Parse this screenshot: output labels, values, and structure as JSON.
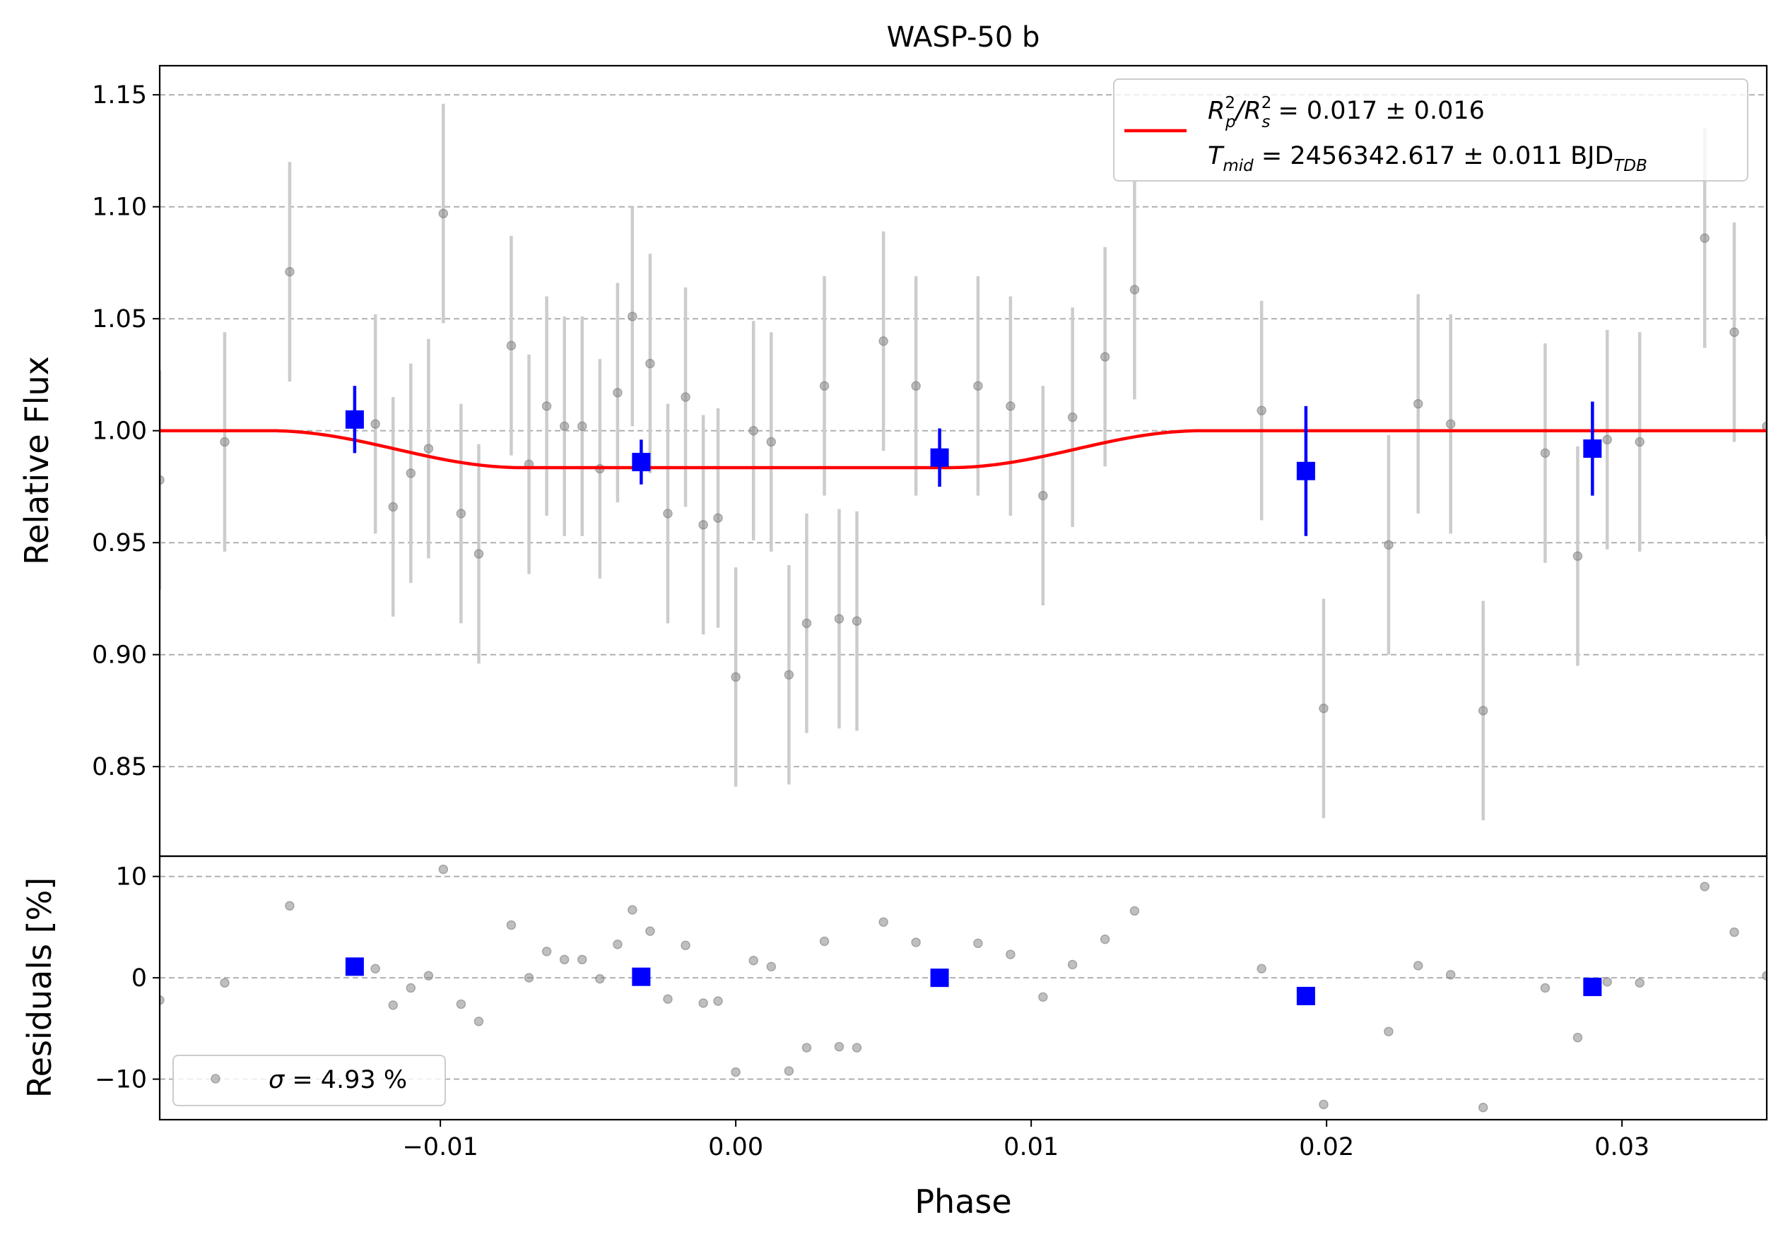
{
  "chart_data": {
    "type": "scatter",
    "title": "WASP-50 b",
    "xlabel": "Phase",
    "xlim": [
      -0.0195,
      0.0349
    ],
    "xticks": [
      -0.01,
      0.0,
      0.01,
      0.02,
      0.03
    ],
    "xtick_labels": [
      "−0.01",
      "0.00",
      "0.01",
      "0.02",
      "0.03"
    ],
    "grid": "horizontal dashed",
    "top_panel": {
      "ylabel": "Relative Flux",
      "ylim": [
        0.81,
        1.163
      ],
      "yticks": [
        0.85,
        0.9,
        0.95,
        1.0,
        1.05,
        1.1,
        1.15
      ],
      "ytick_labels": [
        "0.85",
        "0.90",
        "0.95",
        "1.00",
        "1.05",
        "1.10",
        "1.15"
      ],
      "legend": {
        "placement": "top-right",
        "line1_base": "R",
        "line1_mid": "/R",
        "line1_rest": " = 0.017 ± 0.016",
        "line1_sup1": "2",
        "line1_sub1": "p",
        "line1_sup2": "2",
        "line1_sub2": "s",
        "line2_base": "T",
        "line2_sub": "mid",
        "line2_rest": " = 2456342.617 ± 0.011 BJD",
        "line2_sub2": "TDB"
      },
      "model": {
        "color": "#ff0000",
        "baseline": 1.0,
        "depth": 0.0165,
        "ingress_start": -0.0158,
        "full_start": -0.0072,
        "full_end": 0.0072,
        "egress_end": 0.0158
      },
      "raw": {
        "color": "#808080",
        "errcolor": "#cccccc",
        "points": [
          {
            "x": -0.0195,
            "y": 0.978,
            "err": 0.049
          },
          {
            "x": -0.0173,
            "y": 0.995,
            "err": 0.049
          },
          {
            "x": -0.0151,
            "y": 1.071,
            "err": 0.049
          },
          {
            "x": -0.0122,
            "y": 1.003,
            "err": 0.049
          },
          {
            "x": -0.0116,
            "y": 0.966,
            "err": 0.049
          },
          {
            "x": -0.011,
            "y": 0.981,
            "err": 0.049
          },
          {
            "x": -0.0104,
            "y": 0.992,
            "err": 0.049
          },
          {
            "x": -0.0099,
            "y": 1.097,
            "err": 0.049
          },
          {
            "x": -0.0093,
            "y": 0.963,
            "err": 0.049
          },
          {
            "x": -0.0087,
            "y": 0.945,
            "err": 0.049
          },
          {
            "x": -0.0076,
            "y": 1.038,
            "err": 0.049
          },
          {
            "x": -0.007,
            "y": 0.985,
            "err": 0.049
          },
          {
            "x": -0.0064,
            "y": 1.011,
            "err": 0.049
          },
          {
            "x": -0.0058,
            "y": 1.002,
            "err": 0.049
          },
          {
            "x": -0.0052,
            "y": 1.002,
            "err": 0.049
          },
          {
            "x": -0.0046,
            "y": 0.983,
            "err": 0.049
          },
          {
            "x": -0.004,
            "y": 1.017,
            "err": 0.049
          },
          {
            "x": -0.0035,
            "y": 1.051,
            "err": 0.049
          },
          {
            "x": -0.0029,
            "y": 1.03,
            "err": 0.049
          },
          {
            "x": -0.0023,
            "y": 0.963,
            "err": 0.049
          },
          {
            "x": -0.0017,
            "y": 1.015,
            "err": 0.049
          },
          {
            "x": -0.0011,
            "y": 0.958,
            "err": 0.049
          },
          {
            "x": -0.0006,
            "y": 0.961,
            "err": 0.049
          },
          {
            "x": 0.0,
            "y": 0.89,
            "err": 0.049
          },
          {
            "x": 0.0006,
            "y": 1.0,
            "err": 0.049
          },
          {
            "x": 0.0012,
            "y": 0.995,
            "err": 0.049
          },
          {
            "x": 0.0018,
            "y": 0.891,
            "err": 0.049
          },
          {
            "x": 0.0024,
            "y": 0.914,
            "err": 0.049
          },
          {
            "x": 0.003,
            "y": 1.02,
            "err": 0.049
          },
          {
            "x": 0.0035,
            "y": 0.916,
            "err": 0.049
          },
          {
            "x": 0.0041,
            "y": 0.915,
            "err": 0.049
          },
          {
            "x": 0.005,
            "y": 1.04,
            "err": 0.049
          },
          {
            "x": 0.0061,
            "y": 1.02,
            "err": 0.049
          },
          {
            "x": 0.0082,
            "y": 1.02,
            "err": 0.049
          },
          {
            "x": 0.0093,
            "y": 1.011,
            "err": 0.049
          },
          {
            "x": 0.0104,
            "y": 0.971,
            "err": 0.049
          },
          {
            "x": 0.0114,
            "y": 1.006,
            "err": 0.049
          },
          {
            "x": 0.0125,
            "y": 1.033,
            "err": 0.049
          },
          {
            "x": 0.0135,
            "y": 1.063,
            "err": 0.049
          },
          {
            "x": 0.0178,
            "y": 1.009,
            "err": 0.049
          },
          {
            "x": 0.0199,
            "y": 0.876,
            "err": 0.049
          },
          {
            "x": 0.0221,
            "y": 0.949,
            "err": 0.049
          },
          {
            "x": 0.0231,
            "y": 1.012,
            "err": 0.049
          },
          {
            "x": 0.0242,
            "y": 1.003,
            "err": 0.049
          },
          {
            "x": 0.0253,
            "y": 0.875,
            "err": 0.049
          },
          {
            "x": 0.0274,
            "y": 0.99,
            "err": 0.049
          },
          {
            "x": 0.0285,
            "y": 0.944,
            "err": 0.049
          },
          {
            "x": 0.0295,
            "y": 0.996,
            "err": 0.049
          },
          {
            "x": 0.0306,
            "y": 0.995,
            "err": 0.049
          },
          {
            "x": 0.0328,
            "y": 1.086,
            "err": 0.049
          },
          {
            "x": 0.0338,
            "y": 1.044,
            "err": 0.049
          },
          {
            "x": 0.0349,
            "y": 1.002,
            "err": 0.049
          }
        ]
      },
      "binned": {
        "color": "#0000ff",
        "points": [
          {
            "x": -0.0129,
            "y": 1.005,
            "err": 0.015
          },
          {
            "x": -0.0032,
            "y": 0.986,
            "err": 0.01
          },
          {
            "x": 0.0069,
            "y": 0.988,
            "err": 0.013
          },
          {
            "x": 0.0193,
            "y": 0.982,
            "err": 0.029
          },
          {
            "x": 0.029,
            "y": 0.992,
            "err": 0.021
          }
        ]
      }
    },
    "bottom_panel": {
      "ylabel": "Residuals [%]",
      "ylim": [
        -14,
        12
      ],
      "yticks": [
        -10,
        0,
        10
      ],
      "ytick_labels": [
        "−10",
        "0",
        "10"
      ],
      "legend": {
        "placement": "bottom-left",
        "label_sym": "σ",
        "label_rest": " = 4.93 %"
      },
      "raw_residuals": [
        {
          "x": -0.0195,
          "y": -2.2
        },
        {
          "x": -0.0173,
          "y": -0.5
        },
        {
          "x": -0.0151,
          "y": 7.1
        },
        {
          "x": -0.0122,
          "y": 0.9
        },
        {
          "x": -0.0116,
          "y": -2.7
        },
        {
          "x": -0.011,
          "y": -1.0
        },
        {
          "x": -0.0104,
          "y": 0.2
        },
        {
          "x": -0.0099,
          "y": 10.7
        },
        {
          "x": -0.0093,
          "y": -2.6
        },
        {
          "x": -0.0087,
          "y": -4.3
        },
        {
          "x": -0.0076,
          "y": 5.2
        },
        {
          "x": -0.007,
          "y": 0.0
        },
        {
          "x": -0.0064,
          "y": 2.6
        },
        {
          "x": -0.0058,
          "y": 1.8
        },
        {
          "x": -0.0052,
          "y": 1.8
        },
        {
          "x": -0.0046,
          "y": -0.1
        },
        {
          "x": -0.004,
          "y": 3.3
        },
        {
          "x": -0.0035,
          "y": 6.7
        },
        {
          "x": -0.0029,
          "y": 4.6
        },
        {
          "x": -0.0023,
          "y": -2.1
        },
        {
          "x": -0.0017,
          "y": 3.2
        },
        {
          "x": -0.0011,
          "y": -2.5
        },
        {
          "x": -0.0006,
          "y": -2.3
        },
        {
          "x": 0.0,
          "y": -9.3
        },
        {
          "x": 0.0006,
          "y": 1.7
        },
        {
          "x": 0.0012,
          "y": 1.1
        },
        {
          "x": 0.0018,
          "y": -9.2
        },
        {
          "x": 0.0024,
          "y": -6.9
        },
        {
          "x": 0.003,
          "y": 3.6
        },
        {
          "x": 0.0035,
          "y": -6.8
        },
        {
          "x": 0.0041,
          "y": -6.9
        },
        {
          "x": 0.005,
          "y": 5.5
        },
        {
          "x": 0.0061,
          "y": 3.5
        },
        {
          "x": 0.0082,
          "y": 3.4
        },
        {
          "x": 0.0093,
          "y": 2.3
        },
        {
          "x": 0.0104,
          "y": -1.9
        },
        {
          "x": 0.0114,
          "y": 1.3
        },
        {
          "x": 0.0125,
          "y": 3.8
        },
        {
          "x": 0.0135,
          "y": 6.6
        },
        {
          "x": 0.0178,
          "y": 0.9
        },
        {
          "x": 0.0199,
          "y": -12.5
        },
        {
          "x": 0.0221,
          "y": -5.3
        },
        {
          "x": 0.0231,
          "y": 1.2
        },
        {
          "x": 0.0242,
          "y": 0.3
        },
        {
          "x": 0.0253,
          "y": -12.8
        },
        {
          "x": 0.0274,
          "y": -1.0
        },
        {
          "x": 0.0285,
          "y": -5.9
        },
        {
          "x": 0.0295,
          "y": -0.4
        },
        {
          "x": 0.0306,
          "y": -0.5
        },
        {
          "x": 0.0328,
          "y": 9.0
        },
        {
          "x": 0.0338,
          "y": 4.5
        },
        {
          "x": 0.0349,
          "y": 0.2
        }
      ],
      "binned_residuals": [
        {
          "x": -0.0129,
          "y": 1.1
        },
        {
          "x": -0.0032,
          "y": 0.1
        },
        {
          "x": 0.0069,
          "y": 0.0
        },
        {
          "x": 0.0193,
          "y": -1.8
        },
        {
          "x": 0.029,
          "y": -0.9
        }
      ]
    }
  }
}
